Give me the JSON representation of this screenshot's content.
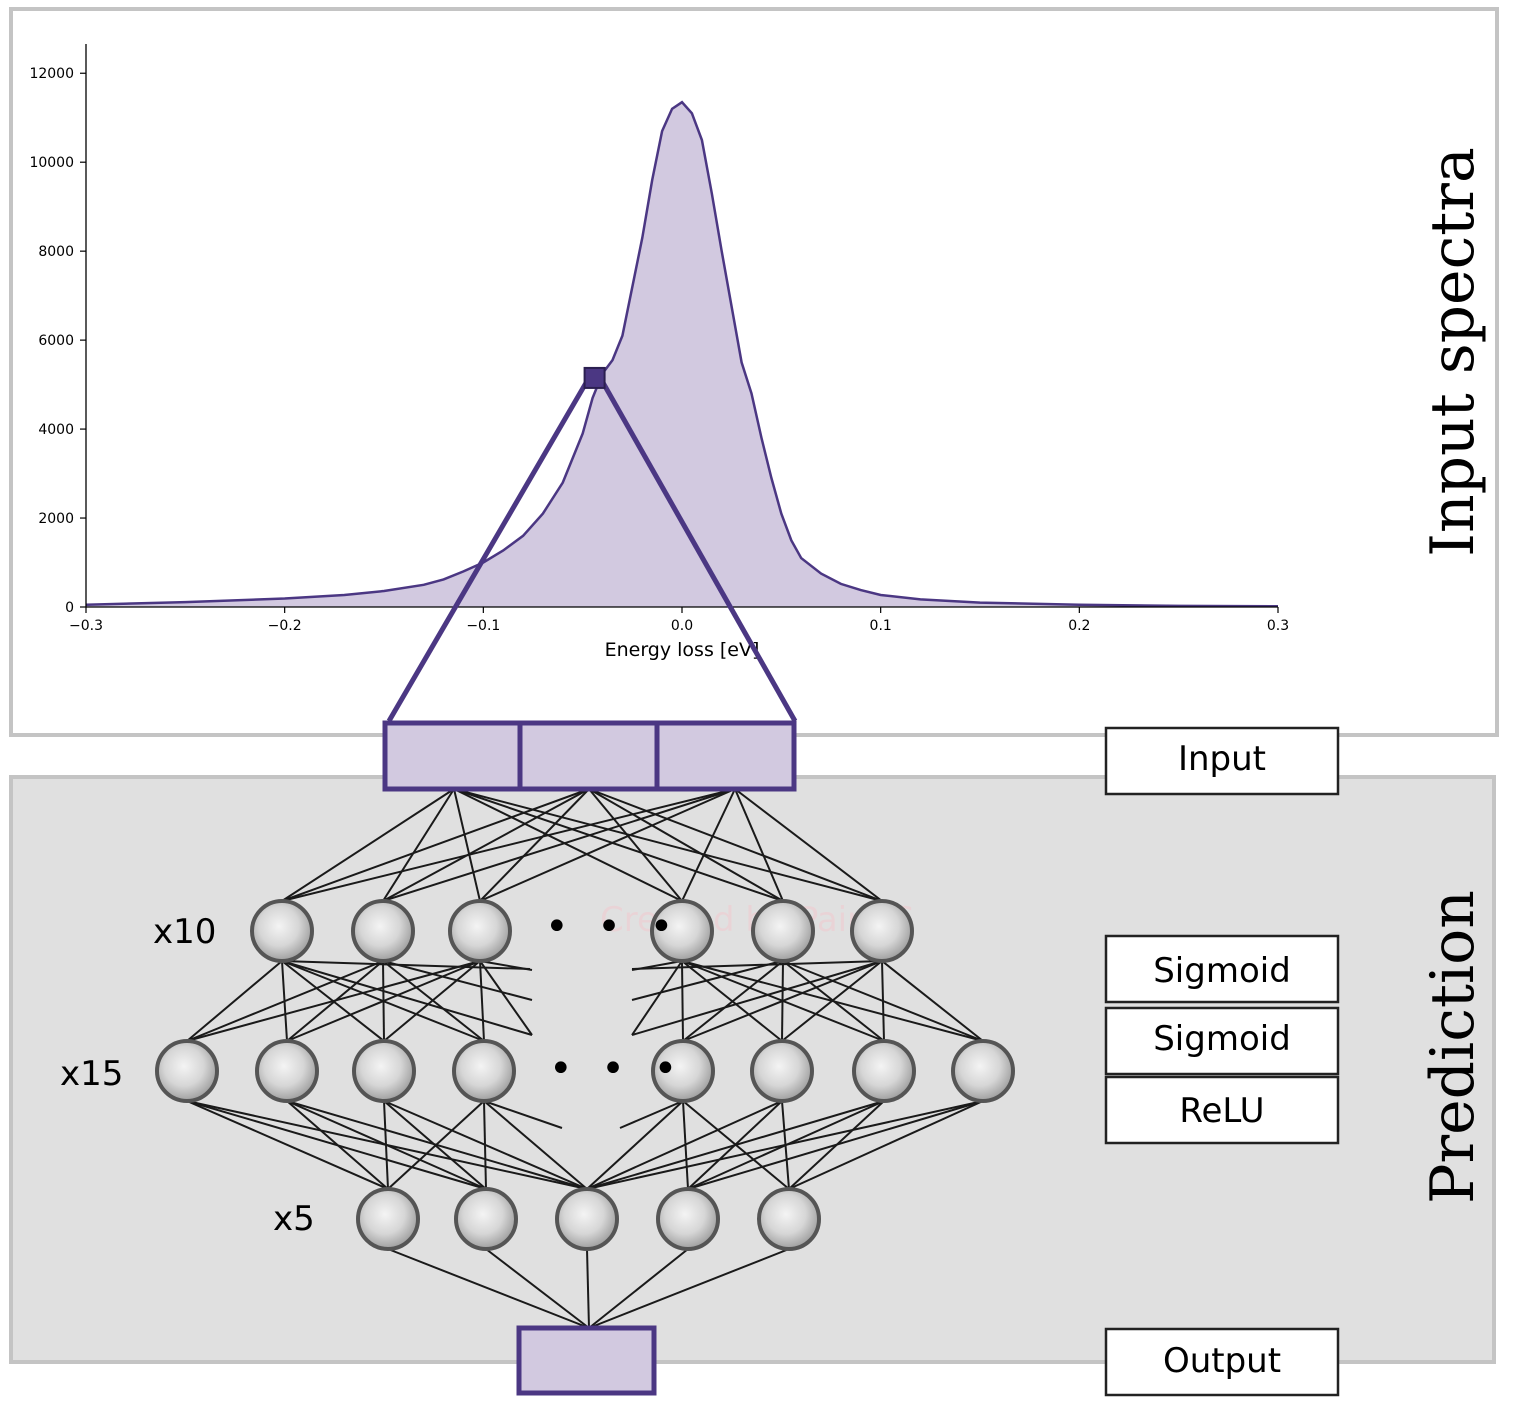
{
  "colors": {
    "accent": "#4b3783",
    "fill": "#d2c9e0",
    "panel_bg": "#e0e0e0",
    "panel_border": "#c4c4c4",
    "node_stroke": "#555555"
  },
  "top_panel": {
    "title": "Input spectra",
    "chart_data": {
      "type": "area",
      "title": "",
      "xlabel": "Energy loss [eV]",
      "ylabel": "",
      "xlim": [
        -0.3,
        0.3
      ],
      "ylim": [
        0,
        12500
      ],
      "grid": false,
      "x_ticks": [
        "−0.3",
        "−0.2",
        "−0.1",
        "0.0",
        "0.1",
        "0.2",
        "0.3"
      ],
      "y_ticks": [
        "0",
        "2000",
        "4000",
        "6000",
        "8000",
        "10000",
        "12000"
      ],
      "series": [
        {
          "x": [
            -0.3,
            -0.25,
            -0.2,
            -0.17,
            -0.15,
            -0.13,
            -0.12,
            -0.11,
            -0.1,
            -0.09,
            -0.08,
            -0.07,
            -0.06,
            -0.05,
            -0.045,
            -0.04,
            -0.035,
            -0.03,
            -0.02,
            -0.015,
            -0.01,
            -0.005,
            0.0,
            0.005,
            0.01,
            0.015,
            0.02,
            0.03,
            0.035,
            0.04,
            0.045,
            0.05,
            0.055,
            0.06,
            0.07,
            0.08,
            0.09,
            0.1,
            0.12,
            0.15,
            0.2,
            0.25,
            0.3
          ],
          "y": [
            50,
            110,
            190,
            270,
            360,
            500,
            620,
            800,
            1000,
            1270,
            1600,
            2100,
            2800,
            3900,
            4700,
            5250,
            5550,
            6100,
            8300,
            9600,
            10700,
            11200,
            11350,
            11100,
            10500,
            9300,
            8000,
            5500,
            4800,
            3800,
            2900,
            2100,
            1500,
            1100,
            750,
            520,
            380,
            270,
            170,
            100,
            50,
            25,
            15
          ]
        }
      ],
      "highlight_point": {
        "x": -0.044,
        "y": 5150
      }
    }
  },
  "network": {
    "layer_labels": {
      "input": "Input",
      "sigmoid1": "Sigmoid",
      "sigmoid2": "Sigmoid",
      "relu": "ReLU",
      "output": "Output"
    },
    "counts": {
      "layer1": "x10",
      "layer2": "x15",
      "layer3": "x5"
    },
    "side_title": "Prediction",
    "ellipsis": "• • •",
    "watermark": "Created by Paint S"
  }
}
